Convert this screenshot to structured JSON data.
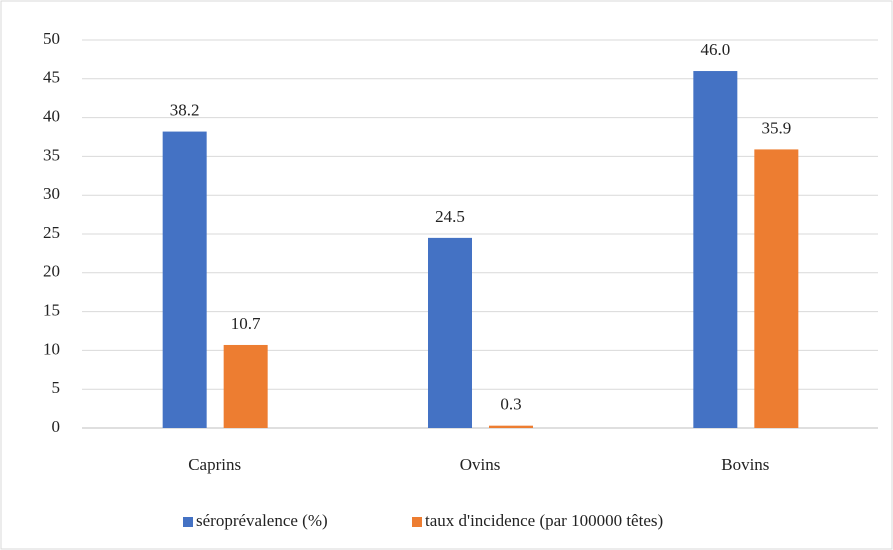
{
  "chart_data": {
    "type": "bar",
    "categories": [
      "Caprins",
      "Ovins",
      "Bovins"
    ],
    "series": [
      {
        "name": "séroprévalence (%)",
        "color": "#4472c4",
        "values": [
          38.2,
          24.5,
          46
        ],
        "value_labels": [
          "38.2",
          "24.5",
          "46.0"
        ]
      },
      {
        "name": "taux d'incidence (par 100000 têtes)",
        "color": "#ed7d31",
        "values": [
          10.7,
          0.3,
          35.9
        ],
        "value_labels": [
          "10.7",
          "0.3",
          "35.9"
        ]
      }
    ],
    "ylim": [
      0,
      50
    ],
    "yticks": [
      0,
      5,
      10,
      15,
      20,
      25,
      30,
      35,
      40,
      45,
      50
    ],
    "grid": true,
    "legend": "bottom"
  }
}
